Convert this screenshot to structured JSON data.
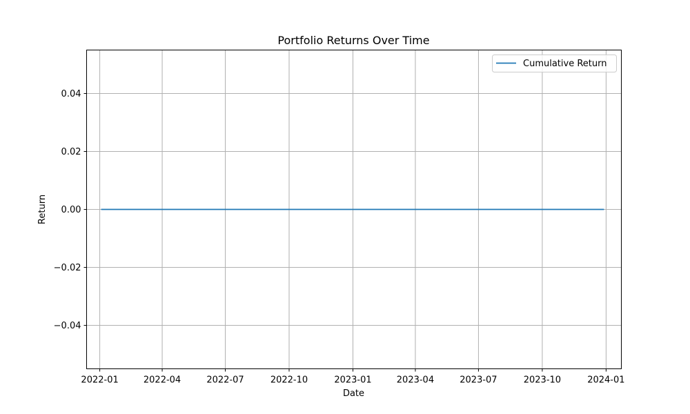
{
  "colors": {
    "series_line": "#1f77b4",
    "grid": "#b0b0b0",
    "axes": "#000000",
    "legend_border": "#cccccc"
  },
  "chart_data": {
    "type": "line",
    "title": "Portfolio Returns Over Time",
    "xlabel": "Date",
    "ylabel": "Return",
    "grid": true,
    "legend_position": "top-right",
    "xlim": [
      "2021-12-13",
      "2024-01-23"
    ],
    "ylim": [
      -0.055,
      0.055
    ],
    "x_ticks": [
      "2022-01-01",
      "2022-04-01",
      "2022-07-01",
      "2022-10-01",
      "2023-01-01",
      "2023-04-01",
      "2023-07-01",
      "2023-10-01",
      "2024-01-01"
    ],
    "x_tick_labels": [
      "2022-01",
      "2022-04",
      "2022-07",
      "2022-10",
      "2023-01",
      "2023-04",
      "2023-07",
      "2023-10",
      "2024-01"
    ],
    "y_ticks": [
      0.04,
      0.02,
      0.0,
      -0.02,
      -0.04
    ],
    "y_tick_labels": [
      "0.04",
      "0.02",
      "0.00",
      "−0.02",
      "−0.04"
    ],
    "series": [
      {
        "name": "Cumulative Return",
        "x": [
          "2022-01-03",
          "2023-12-29"
        ],
        "y": [
          0.0,
          0.0
        ]
      }
    ]
  }
}
